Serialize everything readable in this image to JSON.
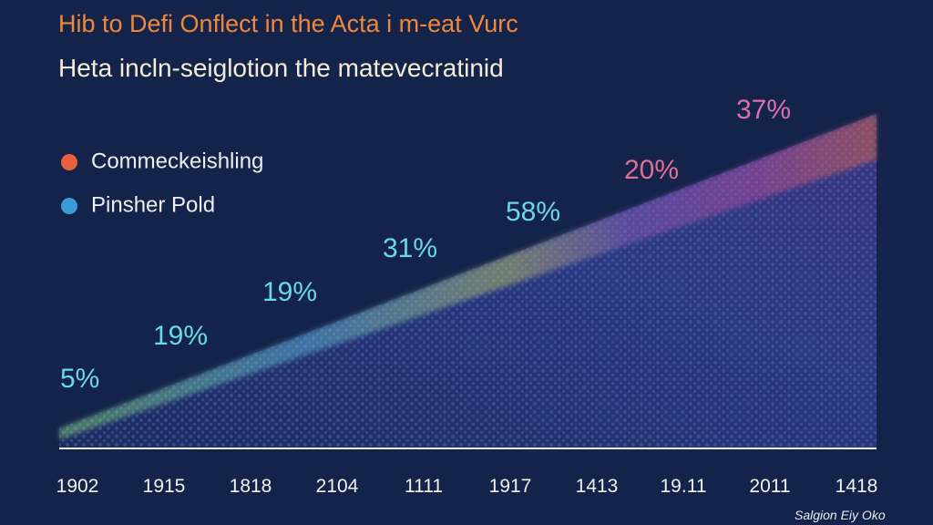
{
  "chart_data": {
    "type": "scatter",
    "title": "Hib to Defi Onflect in the Acta i m-eat Vurc",
    "subtitle": "Heta incln-seiglotion the matevecratinid",
    "categories": [
      "1902",
      "1915",
      "1818",
      "2104",
      "1111",
      "1917",
      "1413",
      "19.11",
      "2011",
      "1418"
    ],
    "series": [
      {
        "name": "Commeckeishling",
        "color": "#e8603c"
      },
      {
        "name": "Pinsher Pold",
        "color": "#3a9ad8"
      }
    ],
    "annotations": [
      "5%",
      "19%",
      "19%",
      "31%",
      "58%",
      "20%",
      "37%"
    ],
    "footnote": "Salgion Eiy Oko"
  }
}
